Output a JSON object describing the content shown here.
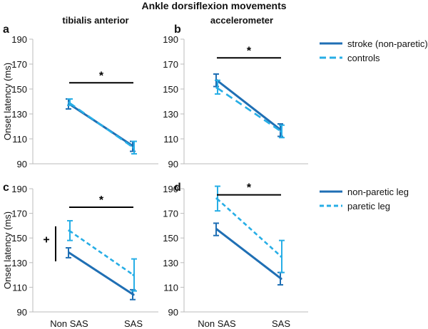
{
  "title": "Ankle dorsiflexion movements",
  "colors": {
    "dark_blue": "#1f6fb4",
    "light_blue": "#27aee6",
    "axis": "#bbbbbb",
    "text": "#111111"
  },
  "legends": {
    "top": [
      {
        "label": "stroke (non-paretic)",
        "color": "#1f6fb4",
        "style": "solid"
      },
      {
        "label": "controls",
        "color": "#27aee6",
        "style": "dashed"
      }
    ],
    "bottom": [
      {
        "label": "non-paretic leg",
        "color": "#1f6fb4",
        "style": "solid"
      },
      {
        "label": "paretic leg",
        "color": "#27aee6",
        "style": "dashed"
      }
    ]
  },
  "chart_data": [
    {
      "type": "line",
      "panel": "a",
      "subtitle": "tibialis anterior",
      "ylabel": "Onset latency (ms)",
      "ylim": [
        90,
        190
      ],
      "yticks": [
        90,
        110,
        130,
        150,
        170,
        190
      ],
      "categories": [
        "Non SAS",
        "SAS"
      ],
      "show_xticklabels": false,
      "series": [
        {
          "name": "stroke (non-paretic)",
          "values": [
            138,
            104
          ],
          "err_low": [
            134,
            100
          ],
          "err_high": [
            142,
            108
          ]
        },
        {
          "name": "controls",
          "values": [
            139,
            103
          ],
          "err_low": [
            137,
            98
          ],
          "err_high": [
            142,
            108
          ]
        }
      ],
      "significance": {
        "label": "*",
        "y": 155
      }
    },
    {
      "type": "line",
      "panel": "b",
      "subtitle": "accelerometer",
      "ylabel": "",
      "ylim": [
        90,
        190
      ],
      "yticks": [
        90,
        110,
        130,
        150,
        170,
        190
      ],
      "categories": [
        "Non SAS",
        "SAS"
      ],
      "show_xticklabels": false,
      "series": [
        {
          "name": "stroke (non-paretic)",
          "values": [
            157,
            117
          ],
          "err_low": [
            152,
            112
          ],
          "err_high": [
            162,
            122
          ]
        },
        {
          "name": "controls",
          "values": [
            151,
            116
          ],
          "err_low": [
            146,
            111
          ],
          "err_high": [
            157,
            121
          ]
        }
      ],
      "significance": {
        "label": "*",
        "y": 175
      }
    },
    {
      "type": "line",
      "panel": "c",
      "subtitle": "",
      "ylabel": "Onset latency (ms)",
      "ylim": [
        90,
        190
      ],
      "yticks": [
        90,
        110,
        130,
        150,
        170,
        190
      ],
      "categories": [
        "Non SAS",
        "SAS"
      ],
      "show_xticklabels": true,
      "series": [
        {
          "name": "non-paretic leg",
          "values": [
            138,
            104
          ],
          "err_low": [
            134,
            100
          ],
          "err_high": [
            142,
            108
          ]
        },
        {
          "name": "paretic leg",
          "values": [
            156,
            120
          ],
          "err_low": [
            148,
            107
          ],
          "err_high": [
            164,
            133
          ]
        }
      ],
      "significance": {
        "label": "*",
        "y": 175
      },
      "side_marker": {
        "label": "+",
        "y_from": 138,
        "y_to": 156
      }
    },
    {
      "type": "line",
      "panel": "d",
      "subtitle": "",
      "ylabel": "",
      "ylim": [
        90,
        190
      ],
      "yticks": [
        90,
        110,
        130,
        150,
        170,
        190
      ],
      "categories": [
        "Non SAS",
        "SAS"
      ],
      "show_xticklabels": true,
      "series": [
        {
          "name": "non-paretic leg",
          "values": [
            157,
            117
          ],
          "err_low": [
            152,
            112
          ],
          "err_high": [
            162,
            122
          ]
        },
        {
          "name": "paretic leg",
          "values": [
            182,
            135
          ],
          "err_low": [
            172,
            122
          ],
          "err_high": [
            192,
            148
          ]
        }
      ],
      "significance": {
        "label": "*",
        "y": 185
      }
    }
  ]
}
